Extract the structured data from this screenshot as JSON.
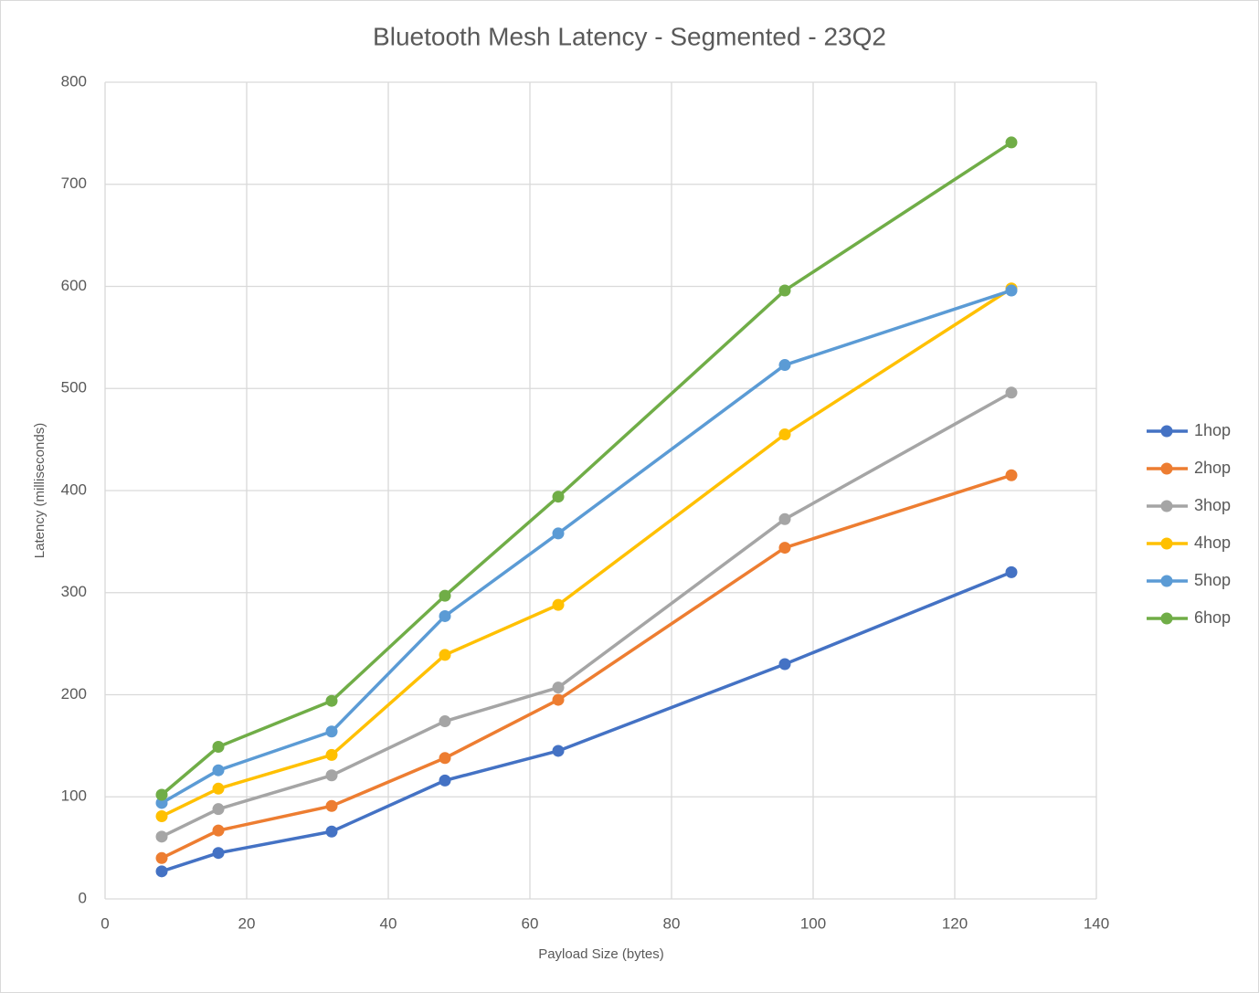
{
  "chart_data": {
    "type": "line",
    "title": "Bluetooth Mesh Latency - Segmented - 23Q2",
    "x_label": "Payload Size (bytes)",
    "y_label": "Latency (milliseconds)",
    "x": [
      8,
      16,
      32,
      48,
      64,
      96,
      128
    ],
    "series": [
      {
        "name": "1hop",
        "color": "#4472c4",
        "values": [
          27,
          45,
          66,
          116,
          145,
          230,
          320
        ]
      },
      {
        "name": "2hop",
        "color": "#ed7d31",
        "values": [
          40,
          67,
          91,
          138,
          195,
          344,
          415
        ]
      },
      {
        "name": "3hop",
        "color": "#a5a5a5",
        "values": [
          61,
          88,
          121,
          174,
          207,
          372,
          496
        ]
      },
      {
        "name": "4hop",
        "color": "#ffc000",
        "values": [
          81,
          108,
          141,
          239,
          288,
          455,
          598
        ]
      },
      {
        "name": "5hop",
        "color": "#5b9bd5",
        "values": [
          94,
          126,
          164,
          277,
          358,
          523,
          596
        ]
      },
      {
        "name": "6hop",
        "color": "#70ad47",
        "values": [
          102,
          149,
          194,
          297,
          394,
          596,
          741
        ]
      }
    ],
    "xlim": [
      0,
      140
    ],
    "xticks": [
      0,
      20,
      40,
      60,
      80,
      100,
      120,
      140
    ],
    "ylim": [
      0,
      800
    ],
    "yticks": [
      0,
      100,
      200,
      300,
      400,
      500,
      600,
      700,
      800
    ],
    "grid": true,
    "legend": "right"
  }
}
